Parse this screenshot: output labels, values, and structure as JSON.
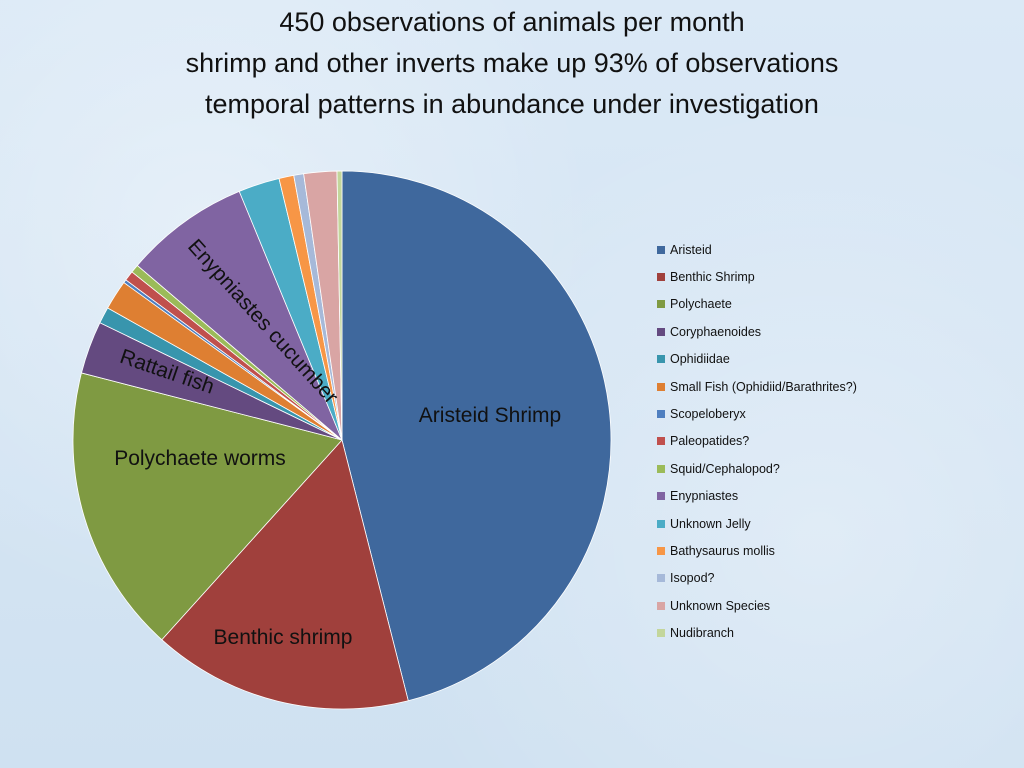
{
  "title": {
    "lines": [
      "450 observations of animals per month",
      "shrimp and other inverts make up 93% of observations",
      "temporal patterns in abundance under investigation"
    ]
  },
  "chart_data": {
    "type": "pie",
    "series": [
      {
        "categories": [
          "Aristeid",
          "Benthic Shrimp",
          "Polychaete",
          "Coryphaenoides",
          "Ophidiidae",
          "Small Fish (Ophidiid/Barathrites?)",
          "Scopeloberyx",
          "Paleopatides?",
          "Squid/Cephalopod?",
          "Enypniastes",
          "Unknown Jelly",
          "Bathysaurus mollis",
          "Isopod?",
          "Unknown Species",
          "Nudibranch"
        ],
        "values": [
          46.5,
          15.8,
          17.5,
          3.2,
          1.0,
          1.8,
          0.2,
          0.6,
          0.5,
          7.6,
          2.5,
          0.9,
          0.6,
          2.0,
          0.3
        ],
        "colors": [
          "#3f689d",
          "#a0403c",
          "#7f9a42",
          "#644a80",
          "#3895ad",
          "#de7f32",
          "#4f7fc0",
          "#c0504d",
          "#9bbb59",
          "#8064a2",
          "#4bacc6",
          "#f79646",
          "#a6b9d9",
          "#d9a5a4",
          "#c3d69b"
        ]
      }
    ],
    "slice_labels": [
      {
        "slice": 0,
        "text": "Aristeid Shrimp"
      },
      {
        "slice": 1,
        "text": "Benthic shrimp"
      },
      {
        "slice": 2,
        "text": "Polychaete worms"
      },
      {
        "slice": 3,
        "text": "Rattail fish"
      },
      {
        "slice": 9,
        "text": "Enypniastes cucumber"
      }
    ],
    "legend_position": "right",
    "start_angle": "12 o'clock",
    "direction": "clockwise"
  }
}
